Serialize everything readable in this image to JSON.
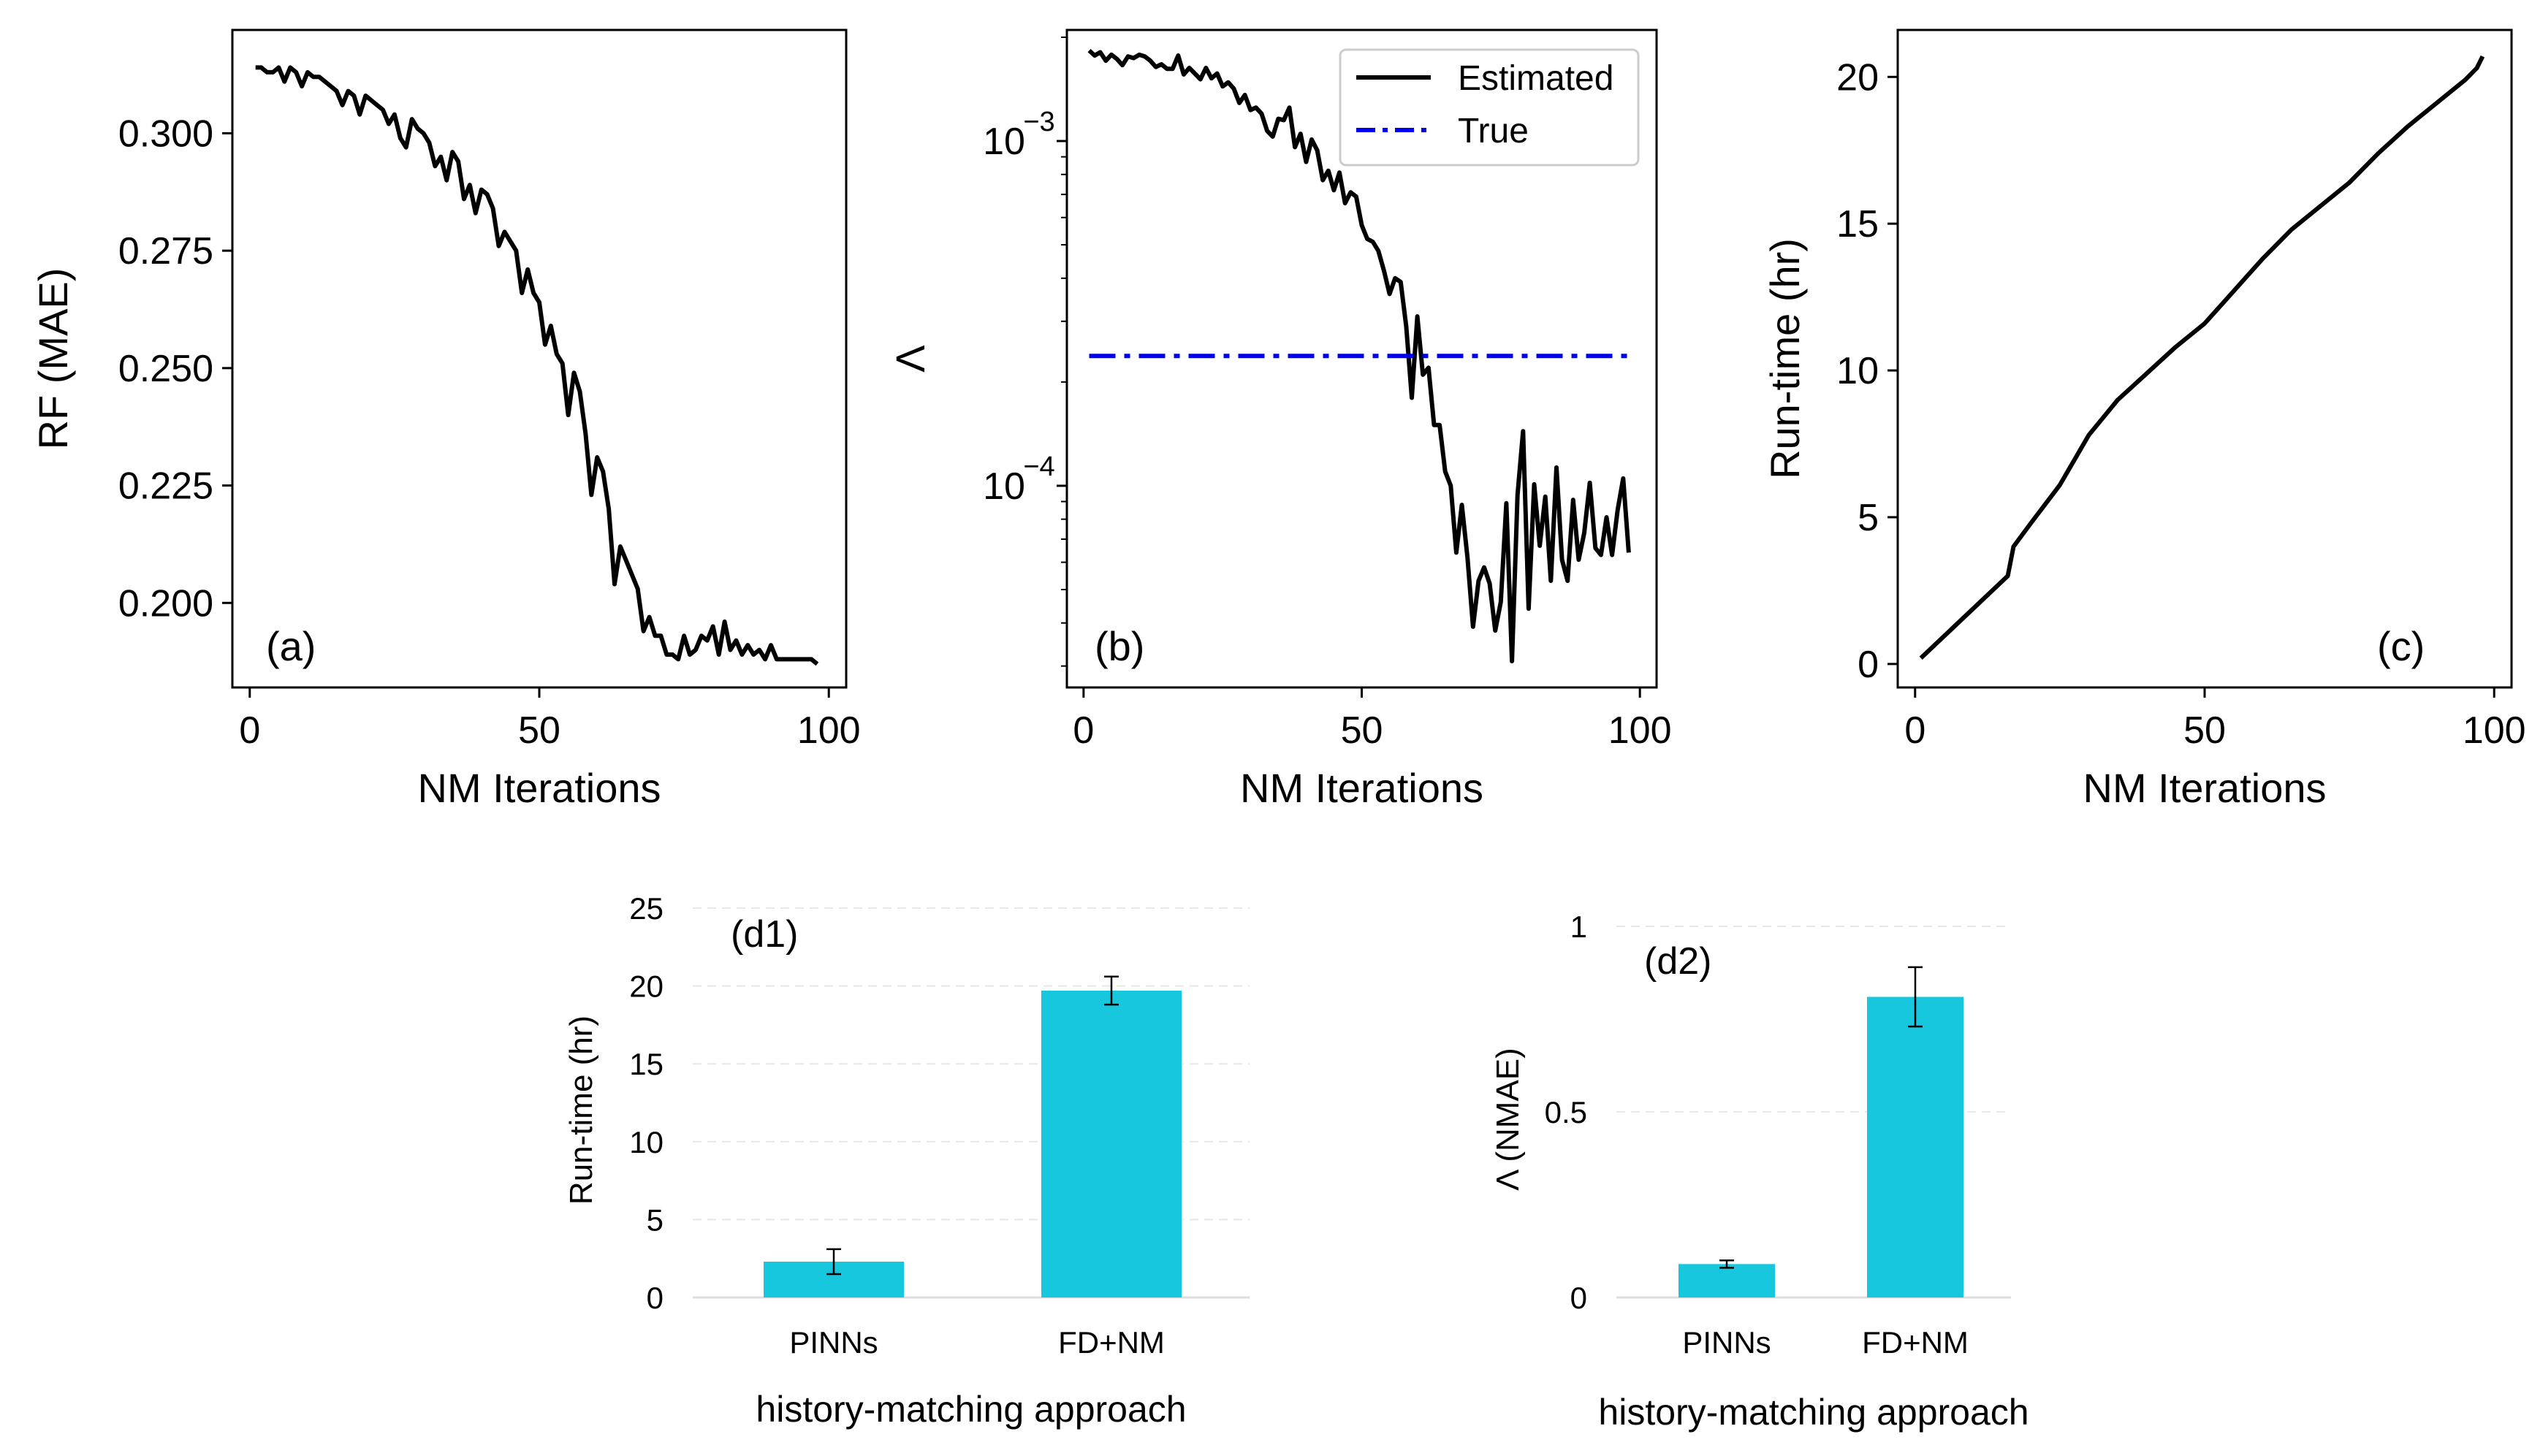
{
  "chart_data": [
    {
      "id": "a",
      "type": "line",
      "panel_label": "(a)",
      "xlabel": "NM Iterations",
      "ylabel": "RF (MAE)",
      "xlim": [
        -3,
        103
      ],
      "ylim": [
        0.182,
        0.322
      ],
      "xticks": [
        0,
        50,
        100
      ],
      "xtick_labels": [
        "0",
        "50",
        "100"
      ],
      "yticks": [
        0.2,
        0.225,
        0.25,
        0.275,
        0.3
      ],
      "ytick_labels": [
        "0.200",
        "0.225",
        "0.250",
        "0.275",
        "0.300"
      ],
      "series": [
        {
          "name": "RF (MAE)",
          "color": "#000000",
          "x": [
            1,
            2,
            3,
            4,
            5,
            6,
            7,
            8,
            9,
            10,
            11,
            12,
            13,
            14,
            15,
            16,
            17,
            18,
            19,
            20,
            21,
            22,
            23,
            24,
            25,
            26,
            27,
            28,
            29,
            30,
            31,
            32,
            33,
            34,
            35,
            36,
            37,
            38,
            39,
            40,
            41,
            42,
            43,
            44,
            45,
            46,
            47,
            48,
            49,
            50,
            51,
            52,
            53,
            54,
            55,
            56,
            57,
            58,
            59,
            60,
            61,
            62,
            63,
            64,
            65,
            66,
            67,
            68,
            69,
            70,
            71,
            72,
            73,
            74,
            75,
            76,
            77,
            78,
            79,
            80,
            81,
            82,
            83,
            84,
            85,
            86,
            87,
            88,
            89,
            90,
            91,
            92,
            93,
            94,
            95,
            96,
            97,
            98
          ],
          "y": [
            0.314,
            0.314,
            0.313,
            0.313,
            0.314,
            0.311,
            0.314,
            0.313,
            0.31,
            0.313,
            0.312,
            0.312,
            0.311,
            0.31,
            0.309,
            0.306,
            0.309,
            0.308,
            0.304,
            0.308,
            0.307,
            0.306,
            0.305,
            0.302,
            0.304,
            0.299,
            0.297,
            0.303,
            0.301,
            0.3,
            0.298,
            0.293,
            0.295,
            0.29,
            0.296,
            0.294,
            0.286,
            0.289,
            0.283,
            0.288,
            0.287,
            0.284,
            0.276,
            0.279,
            0.277,
            0.275,
            0.266,
            0.271,
            0.266,
            0.264,
            0.255,
            0.259,
            0.253,
            0.251,
            0.24,
            0.249,
            0.245,
            0.236,
            0.223,
            0.231,
            0.228,
            0.22,
            0.204,
            0.212,
            0.209,
            0.206,
            0.203,
            0.194,
            0.197,
            0.193,
            0.193,
            0.189,
            0.189,
            0.188,
            0.193,
            0.189,
            0.19,
            0.193,
            0.192,
            0.195,
            0.189,
            0.196,
            0.19,
            0.192,
            0.189,
            0.191,
            0.189,
            0.19,
            0.188,
            0.191,
            0.188,
            0.188,
            0.188,
            0.188,
            0.188,
            0.188,
            0.188,
            0.187
          ]
        }
      ]
    },
    {
      "id": "b",
      "type": "line",
      "panel_label": "(b)",
      "yscale": "log",
      "xlabel": "NM Iterations",
      "ylabel": "Λ",
      "xlim": [
        -3,
        103
      ],
      "ylim": [
        2.6e-05,
        0.0021
      ],
      "xticks": [
        0,
        50,
        100
      ],
      "xtick_labels": [
        "0",
        "50",
        "100"
      ],
      "yticks": [
        0.0001,
        0.001
      ],
      "ytick_labels": [
        [
          "10",
          "−4"
        ],
        [
          "10",
          "−3"
        ]
      ],
      "legend": {
        "position": "top-right",
        "entries": [
          "Estimated",
          "True"
        ]
      },
      "series": [
        {
          "name": "Estimated",
          "style": "solid",
          "color": "#000000",
          "x": [
            1,
            2,
            3,
            4,
            5,
            6,
            7,
            8,
            9,
            10,
            11,
            12,
            13,
            14,
            15,
            16,
            17,
            18,
            19,
            20,
            21,
            22,
            23,
            24,
            25,
            26,
            27,
            28,
            29,
            30,
            31,
            32,
            33,
            34,
            35,
            36,
            37,
            38,
            39,
            40,
            41,
            42,
            43,
            44,
            45,
            46,
            47,
            48,
            49,
            50,
            51,
            52,
            53,
            54,
            55,
            56,
            57,
            58,
            59,
            60,
            61,
            62,
            63,
            64,
            65,
            66,
            67,
            68,
            69,
            70,
            71,
            72,
            73,
            74,
            75,
            76,
            77,
            78,
            79,
            80,
            81,
            82,
            83,
            84,
            85,
            86,
            87,
            88,
            89,
            90,
            91,
            92,
            93,
            94,
            95,
            96,
            97,
            98
          ],
          "y": [
            0.00183,
            0.00177,
            0.00181,
            0.00171,
            0.00178,
            0.00173,
            0.00166,
            0.00176,
            0.00174,
            0.00178,
            0.00176,
            0.00171,
            0.00164,
            0.00167,
            0.00162,
            0.00162,
            0.00177,
            0.00156,
            0.00163,
            0.00157,
            0.00151,
            0.00163,
            0.00152,
            0.00157,
            0.00144,
            0.00148,
            0.00142,
            0.00129,
            0.00136,
            0.00123,
            0.00125,
            0.0012,
            0.00107,
            0.00103,
            0.00116,
            0.00115,
            0.00125,
            0.00096,
            0.00105,
            0.00087,
            0.00101,
            0.00094,
            0.00077,
            0.00082,
            0.00072,
            0.00081,
            0.00066,
            0.00071,
            0.00069,
            0.00057,
            0.00052,
            0.00051,
            0.00048,
            0.00042,
            0.00036,
            0.0004,
            0.00039,
            0.00029,
            0.00018,
            0.00031,
            0.00021,
            0.00022,
            0.00015,
            0.00015,
            0.00011,
            0.0001,
            6.4e-05,
            8.8e-05,
            6.2e-05,
            3.9e-05,
            5.3e-05,
            5.8e-05,
            5.2e-05,
            3.8e-05,
            4.6e-05,
            8.9e-05,
            3.1e-05,
            9.4e-05,
            0.000144,
            4.4e-05,
            0.000101,
            6.7e-05,
            9.3e-05,
            5.3e-05,
            0.000113,
            6.1e-05,
            5.3e-05,
            9.1e-05,
            6.1e-05,
            7.3e-05,
            0.000102,
            6.6e-05,
            6.3e-05,
            8.1e-05,
            6.3e-05,
            8.5e-05,
            0.000105,
            6.4e-05
          ]
        },
        {
          "name": "True",
          "style": "dashdot",
          "color": "#0000ee",
          "x": [
            1,
            98
          ],
          "y": [
            0.000238,
            0.000238
          ]
        }
      ]
    },
    {
      "id": "c",
      "type": "line",
      "panel_label": "(c)",
      "xlabel": "NM Iterations",
      "ylabel": "Run-time (hr)",
      "xlim": [
        -3,
        103
      ],
      "ylim": [
        -0.8,
        21.6
      ],
      "xticks": [
        0,
        50,
        100
      ],
      "xtick_labels": [
        "0",
        "50",
        "100"
      ],
      "yticks": [
        0,
        5,
        10,
        15,
        20
      ],
      "ytick_labels": [
        "0",
        "5",
        "10",
        "15",
        "20"
      ],
      "series": [
        {
          "name": "Run-time",
          "color": "#000000",
          "x": [
            1,
            16,
            17,
            20,
            25,
            30,
            35,
            40,
            45,
            50,
            55,
            60,
            65,
            70,
            75,
            80,
            85,
            90,
            95,
            97,
            98
          ],
          "y": [
            0.2,
            3.0,
            4.0,
            4.8,
            6.1,
            7.8,
            9.0,
            9.9,
            10.8,
            11.6,
            12.7,
            13.8,
            14.8,
            15.6,
            16.4,
            17.4,
            18.3,
            19.1,
            19.9,
            20.3,
            20.7
          ]
        }
      ]
    },
    {
      "id": "d1",
      "type": "bar",
      "panel_label": "(d1)",
      "categories": [
        "PINNs",
        "FD+NM"
      ],
      "values": [
        2.3,
        19.7
      ],
      "errors": [
        0.8,
        0.9
      ],
      "color": "#17c7dd",
      "xlabel": "history-matching approach",
      "ylabel": "Run-time (hr)",
      "ylim": [
        0,
        25
      ],
      "yticks": [
        0,
        5,
        10,
        15,
        20,
        25
      ],
      "ytick_labels": [
        "0",
        "5",
        "10",
        "15",
        "20",
        "25"
      ],
      "grid": true
    },
    {
      "id": "d2",
      "type": "bar",
      "panel_label": "(d2)",
      "categories": [
        "PINNs",
        "FD+NM"
      ],
      "values": [
        0.09,
        0.81
      ],
      "errors": [
        0.01,
        0.08
      ],
      "color": "#17c7dd",
      "xlabel": "history-matching approach",
      "ylabel": "Λ (NMAE)",
      "ylim": [
        0,
        1
      ],
      "yticks": [
        0,
        0.5,
        1
      ],
      "ytick_labels": [
        "0",
        "0.5",
        "1"
      ],
      "grid": true
    }
  ]
}
